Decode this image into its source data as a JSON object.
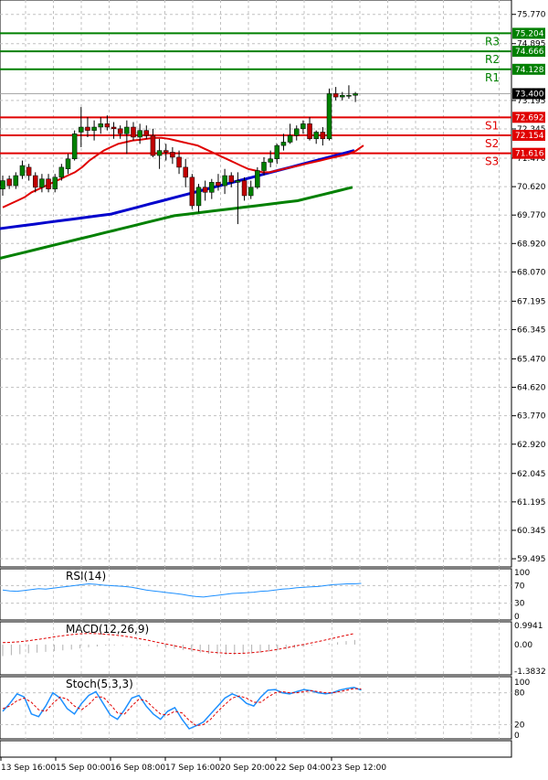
{
  "chart_data": {
    "type": "candlestick",
    "main": {
      "ylim": [
        59.25,
        76.2
      ],
      "yticks": [
        "75.770",
        "74.895",
        "73.195",
        "72.345",
        "71.470",
        "70.620",
        "69.770",
        "68.920",
        "68.070",
        "67.195",
        "66.345",
        "65.470",
        "64.620",
        "63.770",
        "62.920",
        "62.045",
        "61.195",
        "60.345",
        "59.495"
      ],
      "current_price": "73.400",
      "levels": [
        {
          "name": "R3",
          "value": "75.204",
          "color": "#008000"
        },
        {
          "name": "R2",
          "value": "74.666",
          "color": "#008000"
        },
        {
          "name": "R1",
          "value": "74.128",
          "color": "#008000"
        },
        {
          "name": "S1",
          "value": "72.692",
          "color": "#e00000"
        },
        {
          "name": "S2",
          "value": "72.154",
          "color": "#e00000"
        },
        {
          "name": "S3",
          "value": "71.616",
          "color": "#e00000"
        }
      ],
      "candles": [
        [
          70.55,
          70.95,
          70.35,
          70.8
        ],
        [
          70.85,
          70.95,
          70.55,
          70.65
        ],
        [
          70.65,
          71.05,
          70.55,
          70.95
        ],
        [
          70.95,
          71.4,
          70.85,
          71.25
        ],
        [
          71.2,
          71.3,
          70.8,
          70.95
        ],
        [
          70.95,
          71.05,
          70.45,
          70.6
        ],
        [
          70.6,
          71.0,
          70.45,
          70.85
        ],
        [
          70.85,
          71.0,
          70.45,
          70.55
        ],
        [
          70.55,
          71.0,
          70.45,
          70.9
        ],
        [
          70.9,
          71.3,
          70.8,
          71.2
        ],
        [
          71.15,
          71.6,
          71.0,
          71.45
        ],
        [
          71.45,
          72.3,
          71.4,
          72.2
        ],
        [
          72.25,
          73.0,
          71.8,
          72.4
        ],
        [
          72.4,
          72.7,
          72.1,
          72.3
        ],
        [
          72.3,
          72.6,
          72.0,
          72.4
        ],
        [
          72.4,
          72.7,
          72.2,
          72.5
        ],
        [
          72.5,
          72.75,
          72.3,
          72.4
        ],
        [
          72.4,
          72.55,
          72.05,
          72.35
        ],
        [
          72.35,
          72.45,
          72.05,
          72.2
        ],
        [
          72.2,
          72.6,
          71.6,
          72.4
        ],
        [
          72.4,
          72.55,
          72.0,
          72.1
        ],
        [
          72.1,
          72.5,
          71.9,
          72.3
        ],
        [
          72.3,
          72.45,
          72.05,
          72.15
        ],
        [
          72.15,
          72.35,
          71.5,
          71.55
        ],
        [
          71.55,
          72.05,
          71.15,
          71.7
        ],
        [
          71.7,
          71.9,
          71.4,
          71.65
        ],
        [
          71.65,
          71.8,
          71.3,
          71.5
        ],
        [
          71.5,
          71.7,
          71.0,
          71.2
        ],
        [
          71.2,
          71.45,
          70.6,
          70.9
        ],
        [
          70.9,
          71.0,
          69.95,
          70.05
        ],
        [
          70.05,
          70.7,
          69.85,
          70.6
        ],
        [
          70.6,
          70.8,
          70.2,
          70.45
        ],
        [
          70.45,
          70.85,
          70.25,
          70.75
        ],
        [
          70.75,
          71.0,
          70.5,
          70.65
        ],
        [
          70.65,
          71.15,
          70.4,
          70.95
        ],
        [
          70.95,
          71.05,
          70.6,
          70.75
        ],
        [
          70.75,
          71.05,
          69.5,
          70.8
        ],
        [
          70.8,
          70.9,
          70.2,
          70.35
        ],
        [
          70.35,
          70.8,
          70.25,
          70.6
        ],
        [
          70.6,
          71.2,
          70.55,
          71.1
        ],
        [
          71.1,
          71.5,
          70.95,
          71.35
        ],
        [
          71.35,
          71.7,
          71.2,
          71.45
        ],
        [
          71.45,
          71.9,
          71.3,
          71.85
        ],
        [
          71.85,
          72.2,
          71.7,
          71.95
        ],
        [
          71.95,
          72.5,
          71.9,
          72.15
        ],
        [
          72.15,
          72.45,
          72.0,
          72.35
        ],
        [
          72.35,
          72.6,
          72.2,
          72.5
        ],
        [
          72.5,
          72.7,
          72.0,
          72.05
        ],
        [
          72.05,
          72.3,
          71.9,
          72.25
        ],
        [
          72.25,
          72.4,
          71.85,
          72.05
        ],
        [
          72.05,
          73.55,
          72.0,
          73.4
        ],
        [
          73.4,
          73.6,
          73.2,
          73.3
        ],
        [
          73.3,
          73.45,
          73.2,
          73.35
        ],
        [
          73.35,
          73.65,
          73.25,
          73.35
        ],
        [
          73.35,
          73.45,
          73.15,
          73.4
        ]
      ],
      "ma_red": [
        70.0,
        70.1,
        70.2,
        70.3,
        70.45,
        70.55,
        70.65,
        70.75,
        70.85,
        70.95,
        71.05,
        71.2,
        71.4,
        71.55,
        71.7,
        71.8,
        71.9,
        71.95,
        72.0,
        72.02,
        72.05,
        72.08,
        72.08,
        72.05,
        72.0,
        71.95,
        71.9,
        71.85,
        71.75,
        71.65,
        71.55,
        71.45,
        71.35,
        71.25,
        71.15,
        71.1,
        71.05,
        71.05,
        71.1,
        71.15,
        71.2,
        71.25,
        71.3,
        71.35,
        71.4,
        71.45,
        71.5,
        71.55,
        71.6,
        71.7,
        71.85
      ],
      "ma_blue": [
        69.35,
        69.4,
        69.45,
        69.5,
        69.55,
        69.6,
        69.65,
        69.7,
        69.75,
        69.8,
        69.9,
        70.0,
        70.1,
        70.2,
        70.3,
        70.4,
        70.5,
        70.6,
        70.7,
        70.8,
        70.9,
        71.0,
        71.1,
        71.2,
        71.3,
        71.4,
        71.5,
        71.6,
        71.7
      ],
      "ma_green": [
        68.45,
        68.55,
        68.65,
        68.75,
        68.85,
        68.95,
        69.05,
        69.15,
        69.25,
        69.35,
        69.45,
        69.55,
        69.65,
        69.75,
        69.8,
        69.85,
        69.9,
        69.95,
        70.0,
        70.05,
        70.1,
        70.15,
        70.2,
        70.3,
        70.4,
        70.5,
        70.6
      ]
    },
    "rsi": {
      "title": "RSI(14)",
      "ylim": [
        0,
        100
      ],
      "yticks": [
        "100",
        "70",
        "30",
        "0"
      ],
      "values": [
        60,
        58,
        57,
        59,
        61,
        63,
        62,
        64,
        66,
        68,
        70,
        72,
        74,
        73,
        71,
        70,
        69,
        68,
        66,
        63,
        60,
        58,
        56,
        54,
        52,
        50,
        47,
        45,
        44,
        46,
        48,
        50,
        52,
        53,
        54,
        55,
        57,
        58,
        60,
        62,
        63,
        65,
        66,
        67,
        68,
        70,
        72,
        73,
        74,
        74,
        75
      ]
    },
    "macd": {
      "title": "MACD(12,26,9)",
      "yticks": [
        "0.9941",
        "0.00",
        "-1.3832"
      ],
      "hist": [
        -0.6,
        -0.55,
        -0.5,
        -0.45,
        -0.42,
        -0.38,
        -0.34,
        -0.3,
        -0.26,
        -0.2,
        -0.14,
        -0.1,
        -0.06,
        -0.04,
        -0.03,
        -0.03,
        -0.05,
        -0.08,
        -0.12,
        -0.17,
        -0.22,
        -0.28,
        -0.35,
        -0.42,
        -0.48,
        -0.5,
        -0.52,
        -0.52,
        -0.5,
        -0.46,
        -0.42,
        -0.36,
        -0.3,
        -0.24,
        -0.18,
        -0.12,
        -0.06,
        0.0,
        0.06,
        0.12,
        0.18,
        0.24
      ],
      "signal": [
        0.1,
        0.12,
        0.15,
        0.2,
        0.26,
        0.33,
        0.4,
        0.46,
        0.52,
        0.56,
        0.58,
        0.57,
        0.54,
        0.5,
        0.45,
        0.38,
        0.3,
        0.22,
        0.12,
        0.03,
        -0.06,
        -0.15,
        -0.24,
        -0.32,
        -0.38,
        -0.42,
        -0.45,
        -0.46,
        -0.45,
        -0.42,
        -0.38,
        -0.32,
        -0.25,
        -0.17,
        -0.08,
        0.0,
        0.09,
        0.18,
        0.28,
        0.38,
        0.48,
        0.58
      ]
    },
    "stoch": {
      "title": "Stoch(5,3,3)",
      "ylim": [
        0,
        100
      ],
      "yticks": [
        "100",
        "80",
        "20",
        "0"
      ],
      "k": [
        45,
        60,
        78,
        72,
        40,
        35,
        55,
        80,
        70,
        50,
        40,
        60,
        75,
        82,
        60,
        38,
        30,
        48,
        70,
        75,
        55,
        40,
        30,
        45,
        52,
        30,
        12,
        18,
        25,
        40,
        55,
        70,
        78,
        72,
        60,
        55,
        72,
        85,
        86,
        80,
        78,
        82,
        86,
        84,
        80,
        78,
        80,
        85,
        88,
        90,
        85
      ],
      "d": [
        50,
        55,
        65,
        70,
        62,
        48,
        45,
        60,
        72,
        68,
        55,
        48,
        58,
        72,
        72,
        58,
        42,
        40,
        55,
        68,
        65,
        52,
        40,
        38,
        45,
        42,
        28,
        18,
        20,
        30,
        45,
        58,
        70,
        74,
        70,
        62,
        62,
        72,
        80,
        82,
        80,
        80,
        82,
        84,
        82,
        80,
        80,
        82,
        85,
        88,
        87
      ]
    },
    "xticks": [
      "13 Sep 16:00",
      "15 Sep 00:00",
      "16 Sep 08:00",
      "17 Sep 16:00",
      "20 Sep 20:00",
      "22 Sep 04:00",
      "23 Sep 12:00"
    ]
  }
}
